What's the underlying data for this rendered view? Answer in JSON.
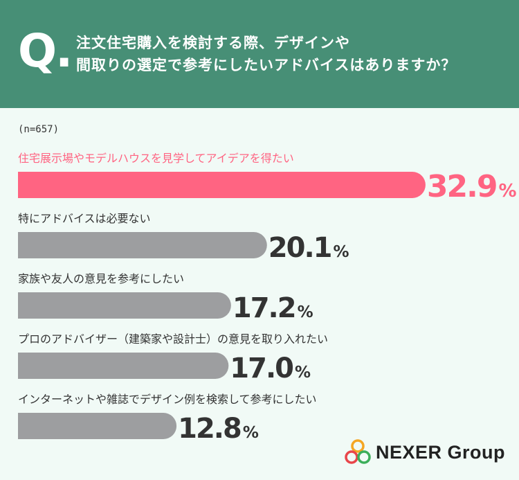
{
  "header": {
    "q_mark": "Q.",
    "question_line1": "注文住宅購入を検討する際、デザインや",
    "question_line2": "間取りの選定で参考にしたいアドバイスはありますか？"
  },
  "sample": "(n=657)",
  "colors": {
    "header_bg": "#478f76",
    "highlight": "#ff6482",
    "bar_gray": "#9d9ea0",
    "text_dark": "#333333"
  },
  "chart_data": {
    "type": "bar",
    "orientation": "horizontal",
    "categories": [
      "住宅展示場やモデルハウスを見学してアイデアを得たい",
      "特にアドバイスは必要ない",
      "家族や友人の意見を参考にしたい",
      "プロのアドバイザー（建築家や設計士）の意見を取り入れたい",
      "インターネットや雑誌でデザイン例を検索して参考にしたい"
    ],
    "values": [
      32.9,
      20.1,
      17.2,
      17.0,
      12.8
    ],
    "value_labels": [
      "32.9",
      "20.1",
      "17.2",
      "17.0",
      "12.8"
    ],
    "unit": "%",
    "highlight_index": 0
  },
  "logo": {
    "text": "NEXER Group",
    "icon": "three-rings-icon"
  }
}
